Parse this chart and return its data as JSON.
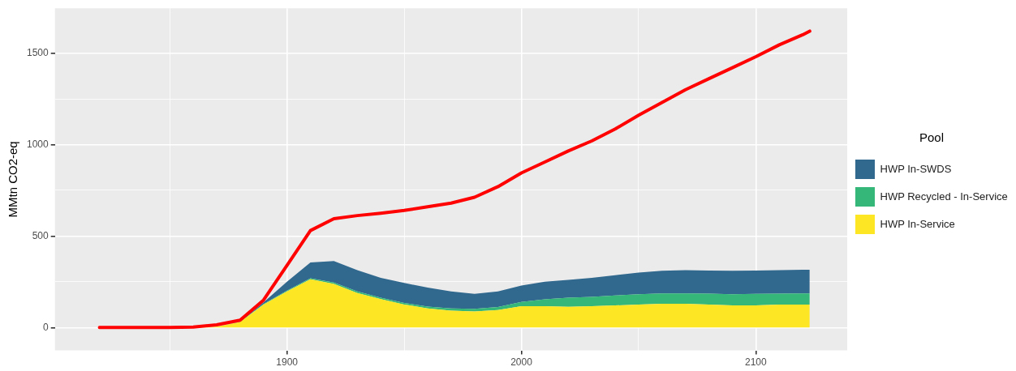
{
  "chart_data": {
    "type": "area",
    "ylabel": "MMtn CO2-eq",
    "legend_title": "Pool",
    "legend": "right",
    "stacked": true,
    "grid": true,
    "x": [
      1820,
      1830,
      1840,
      1850,
      1860,
      1870,
      1880,
      1890,
      1900,
      1910,
      1920,
      1930,
      1940,
      1950,
      1960,
      1970,
      1980,
      1990,
      2000,
      2010,
      2020,
      2030,
      2040,
      2050,
      2060,
      2070,
      2080,
      2090,
      2100,
      2110,
      2120,
      2123
    ],
    "xlim": [
      1801,
      2139
    ],
    "xticks": [
      {
        "value": 1850,
        "label": null
      },
      1900,
      {
        "value": 1950,
        "label": null
      },
      2000,
      {
        "value": 2050,
        "label": null
      },
      2100
    ],
    "ylim": [
      -125,
      1745
    ],
    "yticks": [
      0,
      {
        "value": 250,
        "label": null
      },
      500,
      {
        "value": 750,
        "label": null
      },
      1000,
      {
        "value": 1250,
        "label": null
      },
      1500
    ],
    "series": [
      {
        "name": "HWP In-Service",
        "color": "#fde725",
        "values": [
          0,
          0,
          0,
          0,
          0,
          5,
          30,
          126,
          197,
          264,
          239,
          189,
          155,
          126,
          105,
          92,
          88,
          96,
          117,
          117,
          113,
          117,
          121,
          126,
          130,
          130,
          126,
          121,
          121,
          126,
          126,
          126
        ]
      },
      {
        "name": "HWP Recycled - In-Service",
        "color": "#35b779",
        "values": [
          0,
          0,
          0,
          0,
          0,
          0,
          1,
          3,
          5,
          6,
          7,
          8,
          8,
          8,
          10,
          12,
          14,
          16,
          23,
          37,
          50,
          51,
          54,
          56,
          57,
          57,
          59,
          61,
          63,
          59,
          61,
          61
        ]
      },
      {
        "name": "HWP In-SWDS",
        "color": "#31688e",
        "values": [
          0,
          0,
          0,
          0,
          0,
          0,
          2,
          9,
          49,
          86,
          118,
          117,
          109,
          110,
          103,
          93,
          82,
          86,
          90,
          97,
          98,
          104,
          111,
          118,
          123,
          127,
          126,
          128,
          127,
          129,
          129,
          129
        ]
      },
      {
        "type": "line",
        "color": "#ff0000",
        "values": [
          0,
          0,
          0,
          0,
          3,
          15,
          40,
          150,
          340,
          530,
          595,
          612,
          625,
          640,
          660,
          680,
          712,
          770,
          845,
          905,
          965,
          1020,
          1085,
          1160,
          1230,
          1300,
          1360,
          1420,
          1480,
          1545,
          1600,
          1620
        ]
      }
    ]
  }
}
